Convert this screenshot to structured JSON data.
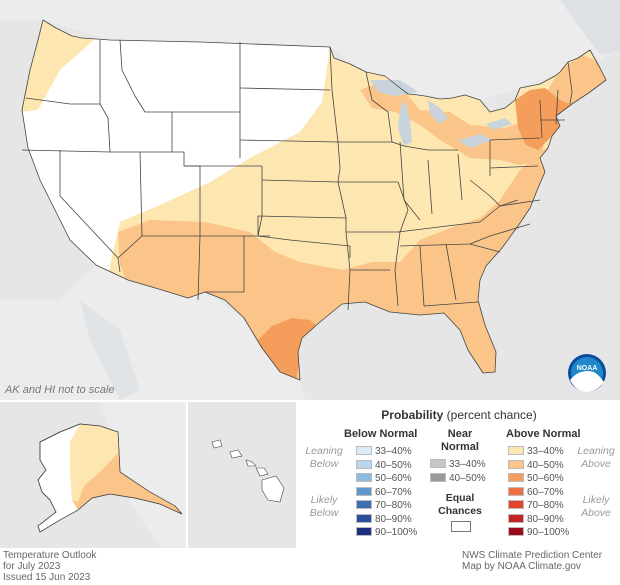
{
  "map": {
    "note": "AK and HI not to scale",
    "colors": {
      "land": "#ffffff",
      "background": "#e6e6e6",
      "water": "#c9d3dc",
      "borders": "#444444",
      "above_33_40": "#fde6b0",
      "above_40_50": "#fbc589",
      "above_50_60": "#f59d5a"
    }
  },
  "legend": {
    "title": "Probability",
    "title_sub": "(percent chance)",
    "below": {
      "heading": "Below Normal",
      "leaning": "Leaning Below",
      "likely": "Likely Below",
      "rows": [
        {
          "label": "33–40%",
          "color": "#dcebf8"
        },
        {
          "label": "40–50%",
          "color": "#b9d6ee"
        },
        {
          "label": "50–60%",
          "color": "#8dbbe0"
        },
        {
          "label": "60–70%",
          "color": "#5f96cc"
        },
        {
          "label": "70–80%",
          "color": "#3f6fb3"
        },
        {
          "label": "80–90%",
          "color": "#2d4e9b"
        },
        {
          "label": "90–100%",
          "color": "#1f2f80"
        }
      ]
    },
    "near": {
      "heading": "Near Normal",
      "rows": [
        {
          "label": "33–40%",
          "color": "#c6c6c6"
        },
        {
          "label": "40–50%",
          "color": "#9a9a9a"
        }
      ],
      "equal": "Equal Chances"
    },
    "above": {
      "heading": "Above Normal",
      "leaning": "Leaning Above",
      "likely": "Likely Above",
      "rows": [
        {
          "label": "33–40%",
          "color": "#fde6b0"
        },
        {
          "label": "40–50%",
          "color": "#fbc589"
        },
        {
          "label": "50–60%",
          "color": "#f59d5a"
        },
        {
          "label": "60–70%",
          "color": "#ee7040"
        },
        {
          "label": "70–80%",
          "color": "#e0452c"
        },
        {
          "label": "80–90%",
          "color": "#c42222"
        },
        {
          "label": "90–100%",
          "color": "#9c0a1c"
        }
      ]
    }
  },
  "footer": {
    "line1": "Temperature Outlook",
    "line2": "for July 2023",
    "line3": "Issued 15 Jun 2023",
    "credit1": "NWS Climate Prediction Center",
    "credit2": "Map by NOAA Climate.gov"
  },
  "logo": {
    "text": "NOAA"
  }
}
